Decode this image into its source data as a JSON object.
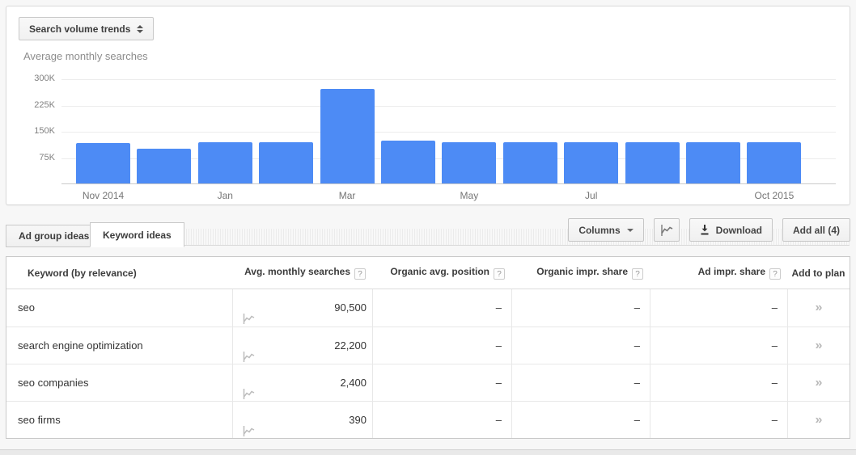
{
  "chart_panel": {
    "trend_selector_label": "Search volume trends",
    "title": "Average monthly searches"
  },
  "chart_data": {
    "type": "bar",
    "title": "Average monthly searches",
    "categories": [
      "Nov 2014",
      "Dec 2014",
      "Jan 2015",
      "Feb 2015",
      "Mar 2015",
      "Apr 2015",
      "May 2015",
      "Jun 2015",
      "Jul 2015",
      "Aug 2015",
      "Sep 2015",
      "Oct 2015"
    ],
    "values": [
      116000,
      100000,
      117000,
      117000,
      270000,
      122000,
      118000,
      118000,
      118000,
      118000,
      118000,
      118000
    ],
    "x_tick_labels": [
      "Nov 2014",
      "",
      "Jan",
      "",
      "Mar",
      "",
      "May",
      "",
      "Jul",
      "",
      "",
      "Oct 2015"
    ],
    "y_ticks": [
      {
        "label": "75K",
        "value": 75000
      },
      {
        "label": "150K",
        "value": 150000
      },
      {
        "label": "225K",
        "value": 225000
      },
      {
        "label": "300K",
        "value": 300000
      }
    ],
    "ylim": [
      0,
      300000
    ],
    "bar_color": "#4d8bf5",
    "grid": true,
    "legend": "none"
  },
  "tabs": [
    {
      "label": "Ad group ideas",
      "active": false
    },
    {
      "label": "Keyword ideas",
      "active": true
    }
  ],
  "toolbar": {
    "columns_label": "Columns",
    "chart_button": "line-chart-icon",
    "download_label": "Download",
    "add_all_label": "Add all (4)"
  },
  "table": {
    "headers": [
      {
        "label": "Keyword (by relevance)",
        "help": false
      },
      {
        "label": "Avg. monthly searches",
        "help": true
      },
      {
        "label": "Organic avg. position",
        "help": true
      },
      {
        "label": "Organic impr. share",
        "help": true
      },
      {
        "label": "Ad impr. share",
        "help": true
      },
      {
        "label": "Add to plan",
        "help": false
      }
    ],
    "help_glyph": "?",
    "add_glyph": "»",
    "rows": [
      {
        "keyword": "seo",
        "avg_monthly_searches": "90,500",
        "organic_avg_position": "–",
        "organic_impr_share": "–",
        "ad_impr_share": "–"
      },
      {
        "keyword": "search engine optimization",
        "avg_monthly_searches": "22,200",
        "organic_avg_position": "–",
        "organic_impr_share": "–",
        "ad_impr_share": "–"
      },
      {
        "keyword": "seo companies",
        "avg_monthly_searches": "2,400",
        "organic_avg_position": "–",
        "organic_impr_share": "–",
        "ad_impr_share": "–"
      },
      {
        "keyword": "seo firms",
        "avg_monthly_searches": "390",
        "organic_avg_position": "–",
        "organic_impr_share": "–",
        "ad_impr_share": "–"
      }
    ]
  }
}
